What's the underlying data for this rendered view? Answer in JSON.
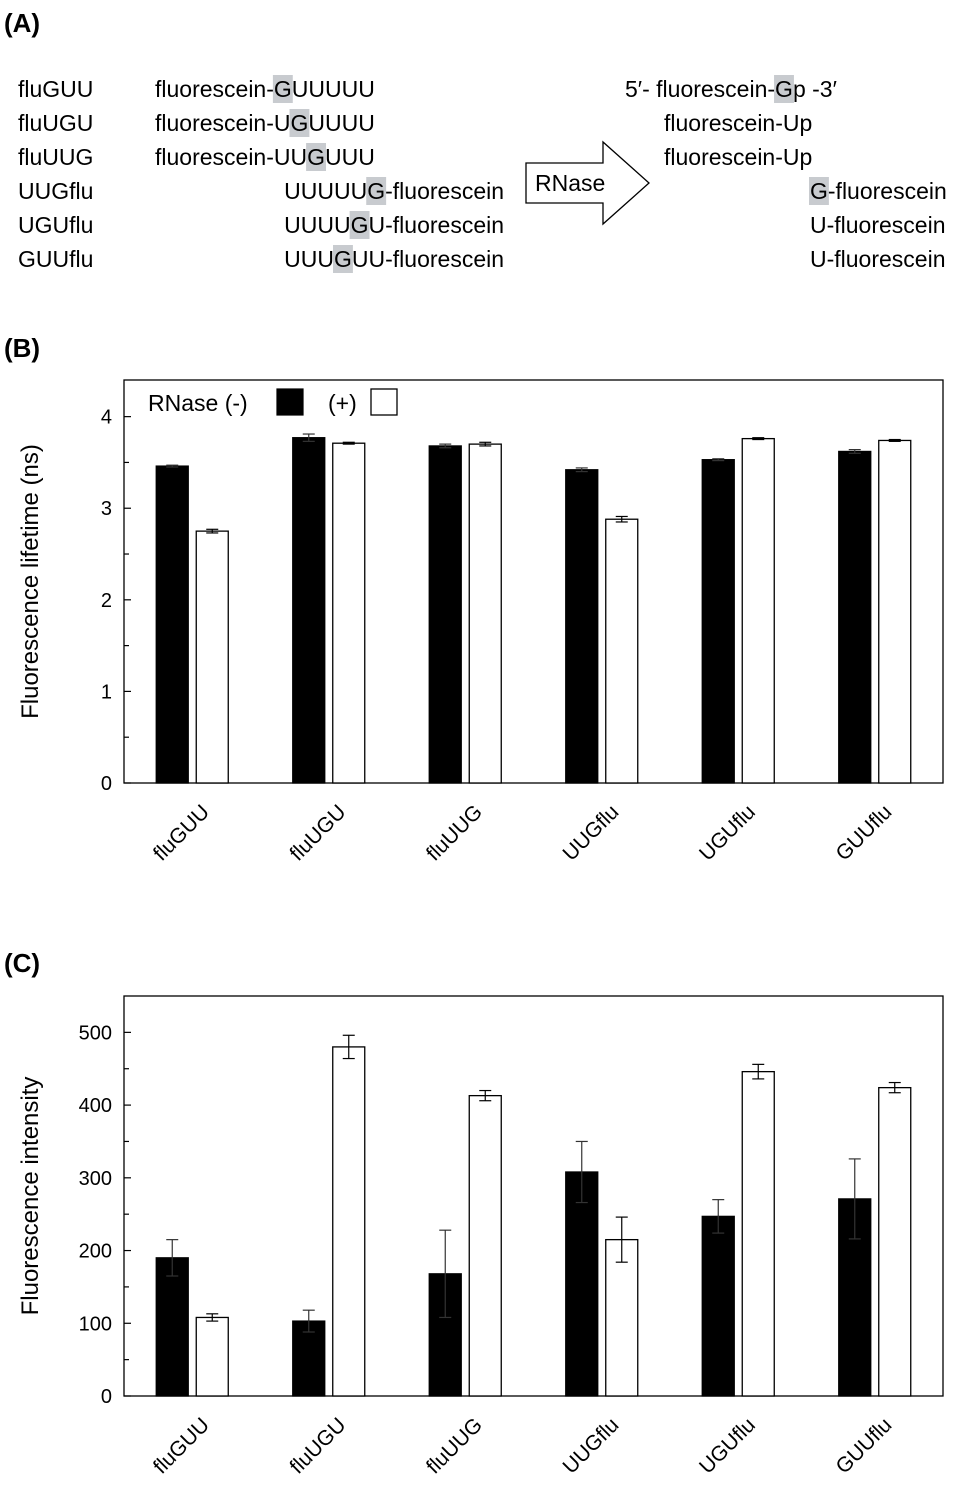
{
  "panel_a": {
    "label": "(A)",
    "rows": [
      {
        "name": "fluGUU",
        "seq_pre": "fluorescein-",
        "seq_g": "G",
        "seq_post": "UUUUU",
        "product_pre": "5′- fluorescein-",
        "product_g": "G",
        "product_post": "p -3′"
      },
      {
        "name": "fluUGU",
        "seq_pre": "fluorescein-U",
        "seq_g": "G",
        "seq_post": "UUUU",
        "product_pre": "fluorescein-Up",
        "product_g": "",
        "product_post": ""
      },
      {
        "name": "fluUUG",
        "seq_pre": "fluorescein-UU",
        "seq_g": "G",
        "seq_post": "UUU",
        "product_pre": "fluorescein-Up",
        "product_g": "",
        "product_post": ""
      },
      {
        "name": "UUGflu",
        "seq_pre": "UUUUU",
        "seq_g": "G",
        "seq_post": "-fluorescein",
        "product_pre": "",
        "product_g": "G",
        "product_post": "-fluorescein"
      },
      {
        "name": "UGUflu",
        "seq_pre": "UUUU",
        "seq_g": "G",
        "seq_post": "U-fluorescein",
        "product_pre": "U-fluorescein",
        "product_g": "",
        "product_post": ""
      },
      {
        "name": "GUUflu",
        "seq_pre": "UUU",
        "seq_g": "G",
        "seq_post": "UU-fluorescein",
        "product_pre": "U-fluorescein",
        "product_g": "",
        "product_post": ""
      }
    ],
    "arrow_label": "RNase"
  },
  "chart_data": [
    {
      "panel": "(B)",
      "type": "bar",
      "ylabel": "Fluorescence lifetime (ns)",
      "categories": [
        "fluGUU",
        "fluUGU",
        "fluUUG",
        "UUGflu",
        "UGUflu",
        "GUUflu"
      ],
      "ylim": [
        0,
        4.4
      ],
      "yticks": [
        0,
        1,
        2,
        3,
        4
      ],
      "legend": {
        "title": "RNase (-)",
        "second": "(+)",
        "position": "top-left"
      },
      "series": [
        {
          "name": "RNase (-)",
          "color": "#000000",
          "values": [
            3.46,
            3.77,
            3.68,
            3.42,
            3.53,
            3.62
          ],
          "errors": [
            0.01,
            0.04,
            0.02,
            0.02,
            0.01,
            0.02
          ]
        },
        {
          "name": "(+)",
          "color": "#ffffff",
          "values": [
            2.75,
            3.71,
            3.7,
            2.88,
            3.76,
            3.74
          ],
          "errors": [
            0.02,
            0.01,
            0.02,
            0.03,
            0.01,
            0.01
          ]
        }
      ]
    },
    {
      "panel": "(C)",
      "type": "bar",
      "ylabel": "Fluorescence intensity",
      "categories": [
        "fluGUU",
        "fluUGU",
        "fluUUG",
        "UUGflu",
        "UGUflu",
        "GUUflu"
      ],
      "ylim": [
        0,
        550
      ],
      "yticks": [
        0,
        100,
        200,
        300,
        400,
        500
      ],
      "series": [
        {
          "name": "RNase (-)",
          "color": "#000000",
          "values": [
            190,
            103,
            168,
            308,
            247,
            271
          ],
          "errors": [
            25,
            15,
            60,
            42,
            23,
            55
          ]
        },
        {
          "name": "(+)",
          "color": "#ffffff",
          "values": [
            108,
            480,
            413,
            215,
            446,
            424
          ],
          "errors": [
            5,
            16,
            7,
            31,
            10,
            7
          ]
        }
      ]
    }
  ]
}
